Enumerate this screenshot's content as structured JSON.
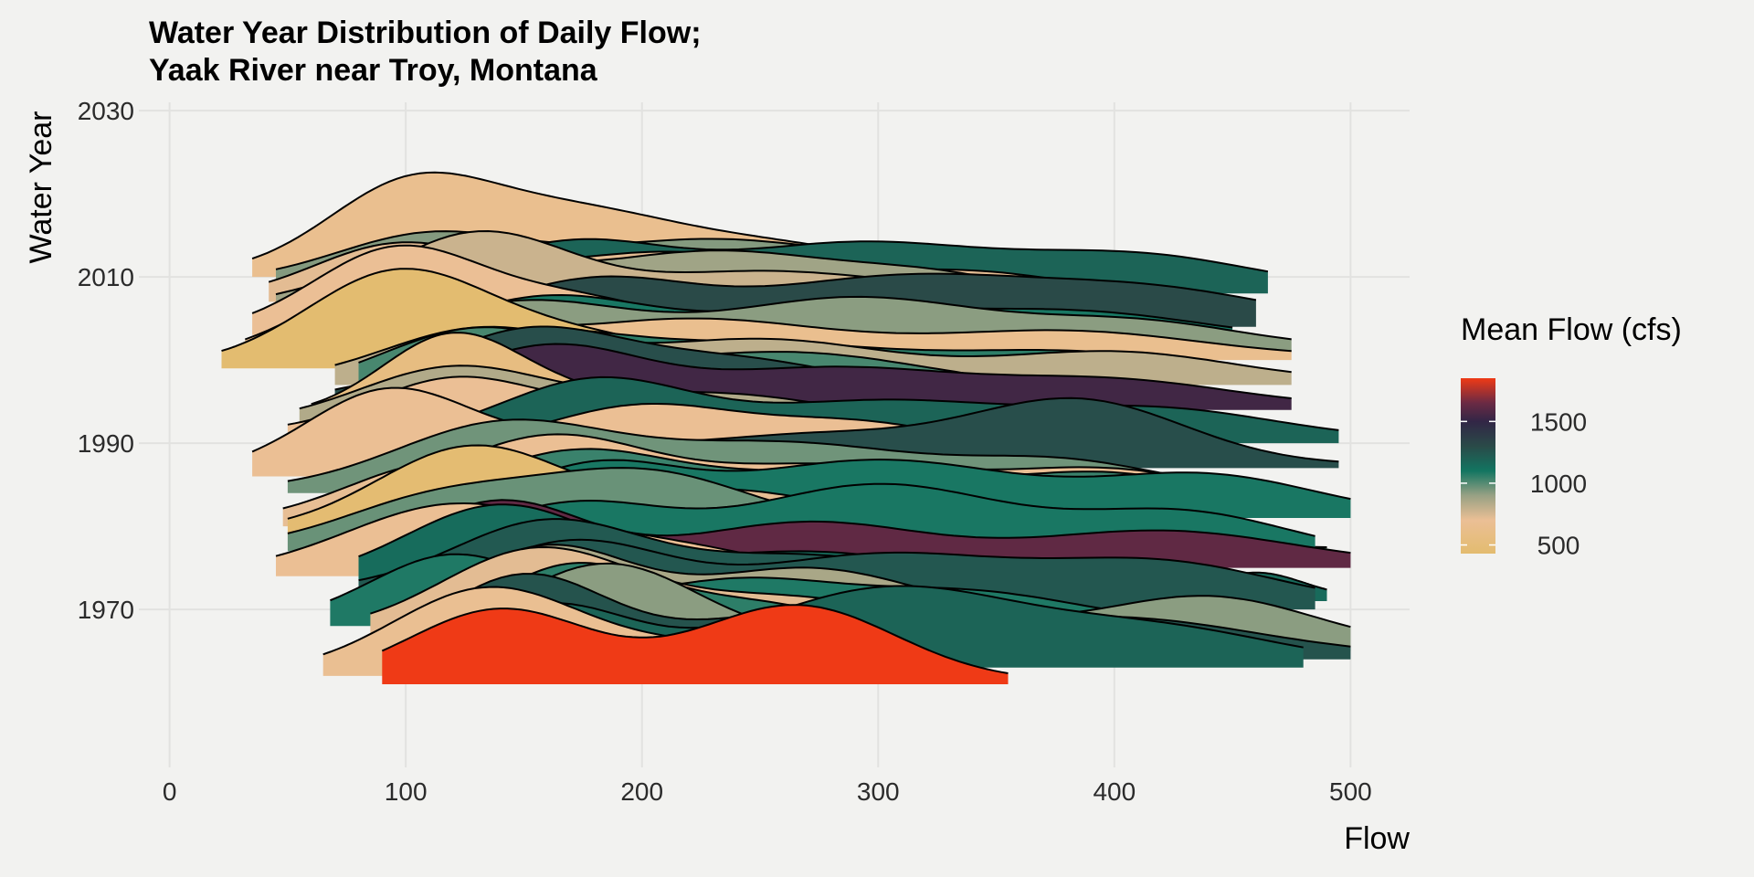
{
  "chart_data": {
    "type": "ridgeline",
    "title_line1": "Water Year Distribution of Daily Flow;",
    "title_line2": "Yaak River near Troy, Montana",
    "xlabel": "Flow",
    "ylabel": "Water Year",
    "xlim": [
      -13,
      525
    ],
    "ylim": [
      1951,
      2031
    ],
    "x_ticks": [
      "0",
      "100",
      "200",
      "300",
      "400",
      "500"
    ],
    "y_ticks": [
      "1970",
      "1990",
      "2010",
      "2030"
    ],
    "grid": true,
    "legend": {
      "title": "Mean Flow (cfs)",
      "placement": "right",
      "tick_labels": [
        "1500",
        "1000",
        "500"
      ],
      "tick_values": [
        1500,
        1000,
        500
      ],
      "range": [
        430,
        1850
      ],
      "color_stops": [
        {
          "value": 430,
          "color": "#e3bc6f"
        },
        {
          "value": 700,
          "color": "#ebbf95"
        },
        {
          "value": 900,
          "color": "#98a184"
        },
        {
          "value": 1100,
          "color": "#127561"
        },
        {
          "value": 1300,
          "color": "#2a4a48"
        },
        {
          "value": 1500,
          "color": "#322646"
        },
        {
          "value": 1650,
          "color": "#6b2a44"
        },
        {
          "value": 1850,
          "color": "#ef3a16"
        }
      ]
    },
    "series": [
      {
        "year": 1961,
        "x_range": [
          90,
          355
        ],
        "mean_flow": 1850,
        "peaks": [
          [
            140,
            0.85,
            38
          ],
          [
            265,
            0.9,
            42
          ]
        ]
      },
      {
        "year": 1962,
        "x_range": [
          65,
          340
        ],
        "mean_flow": 680,
        "peaks": [
          [
            135,
            1.0,
            40
          ],
          [
            230,
            0.3,
            40
          ]
        ]
      },
      {
        "year": 1963,
        "x_range": [
          70,
          480
        ],
        "mean_flow": 1180,
        "peaks": [
          [
            160,
            0.7,
            35
          ],
          [
            305,
            0.9,
            55
          ],
          [
            420,
            0.4,
            50
          ]
        ]
      },
      {
        "year": 1964,
        "x_range": [
          85,
          500
        ],
        "mean_flow": 1260,
        "peaks": [
          [
            150,
            0.95,
            35
          ],
          [
            270,
            0.5,
            50
          ],
          [
            400,
            0.45,
            60
          ]
        ]
      },
      {
        "year": 1965,
        "x_range": [
          85,
          500
        ],
        "mean_flow": 920,
        "peaks": [
          [
            185,
            1.0,
            40
          ],
          [
            330,
            0.3,
            45
          ],
          [
            440,
            0.6,
            45
          ]
        ]
      },
      {
        "year": 1966,
        "x_range": [
          100,
          335
        ],
        "mean_flow": 1060,
        "peaks": [
          [
            170,
            0.85,
            35
          ],
          [
            250,
            0.4,
            40
          ]
        ]
      },
      {
        "year": 1967,
        "x_range": [
          85,
          405
        ],
        "mean_flow": 720,
        "peaks": [
          [
            155,
            0.95,
            40
          ],
          [
            260,
            0.4,
            50
          ]
        ]
      },
      {
        "year": 1968,
        "x_range": [
          68,
          395
        ],
        "mean_flow": 1080,
        "peaks": [
          [
            120,
            0.8,
            35
          ],
          [
            240,
            0.5,
            45
          ],
          [
            340,
            0.35,
            45
          ]
        ]
      },
      {
        "year": 1969,
        "x_range": [
          90,
          405
        ],
        "mean_flow": 860,
        "peaks": [
          [
            160,
            0.8,
            35
          ],
          [
            270,
            0.55,
            45
          ]
        ]
      },
      {
        "year": 1970,
        "x_range": [
          85,
          485
        ],
        "mean_flow": 1240,
        "peaks": [
          [
            170,
            0.75,
            40
          ],
          [
            300,
            0.6,
            55
          ],
          [
            420,
            0.5,
            50
          ]
        ]
      },
      {
        "year": 1971,
        "x_range": [
          430,
          490
        ],
        "mean_flow": 1150,
        "peaks": [
          [
            460,
            0.3,
            20
          ]
        ]
      },
      {
        "year": 1972,
        "x_range": [
          80,
          375
        ],
        "mean_flow": 1230,
        "peaks": [
          [
            160,
            0.8,
            40
          ],
          [
            270,
            0.4,
            50
          ]
        ]
      },
      {
        "year": 1973,
        "x_range": [
          80,
          375
        ],
        "mean_flow": 1140,
        "peaks": [
          [
            140,
            0.9,
            40
          ],
          [
            270,
            0.35,
            50
          ]
        ]
      },
      {
        "year": 1974,
        "x_range": [
          45,
          310
        ],
        "mean_flow": 690,
        "peaks": [
          [
            120,
            0.8,
            45
          ],
          [
            210,
            0.3,
            40
          ]
        ]
      },
      {
        "year": 1975,
        "x_range": [
          80,
          500
        ],
        "mean_flow": 1620,
        "peaks": [
          [
            140,
            0.75,
            35
          ],
          [
            270,
            0.5,
            50
          ],
          [
            420,
            0.4,
            55
          ]
        ]
      },
      {
        "year": 1976,
        "x_range": [
          85,
          485
        ],
        "mean_flow": 1090,
        "peaks": [
          [
            170,
            0.6,
            40
          ],
          [
            300,
            0.85,
            55
          ],
          [
            430,
            0.5,
            45
          ]
        ]
      },
      {
        "year": 1977,
        "x_range": [
          50,
          490
        ],
        "mean_flow": 970,
        "peaks": [
          [
            110,
            0.5,
            40
          ],
          [
            200,
            0.9,
            50
          ],
          [
            350,
            0.4,
            50
          ]
        ]
      },
      {
        "year": 1978,
        "x_range": [
          410,
          445
        ],
        "mean_flow": 690,
        "peaks": [
          [
            428,
            0.2,
            15
          ]
        ]
      },
      {
        "year": 1979,
        "x_range": [
          50,
          330
        ],
        "mean_flow": 450,
        "peaks": [
          [
            128,
            1.0,
            40
          ],
          [
            220,
            0.3,
            40
          ]
        ]
      },
      {
        "year": 1980,
        "x_range": [
          48,
          350
        ],
        "mean_flow": 710,
        "peaks": [
          [
            115,
            0.7,
            40
          ],
          [
            230,
            0.4,
            50
          ]
        ]
      },
      {
        "year": 1981,
        "x_range": [
          110,
          500
        ],
        "mean_flow": 1090,
        "peaks": [
          [
            180,
            0.55,
            35
          ],
          [
            300,
            0.65,
            60
          ],
          [
            440,
            0.45,
            45
          ]
        ]
      },
      {
        "year": 1982,
        "x_range": [
          70,
          445
        ],
        "mean_flow": 1040,
        "peaks": [
          [
            170,
            0.6,
            40
          ],
          [
            280,
            0.4,
            60
          ],
          [
            400,
            0.35,
            40
          ]
        ]
      },
      {
        "year": 1983,
        "x_range": [
          85,
          460
        ],
        "mean_flow": 690,
        "peaks": [
          [
            160,
            0.7,
            40
          ],
          [
            280,
            0.4,
            60
          ],
          [
            400,
            0.3,
            40
          ]
        ]
      },
      {
        "year": 1984,
        "x_range": [
          50,
          440
        ],
        "mean_flow": 960,
        "peaks": [
          [
            140,
            0.75,
            45
          ],
          [
            260,
            0.55,
            60
          ],
          [
            380,
            0.3,
            40
          ]
        ]
      },
      {
        "year": 1985,
        "x_range": [
          373,
          397
        ],
        "mean_flow": 770,
        "peaks": [
          [
            385,
            0.15,
            10
          ]
        ]
      },
      {
        "year": 1986,
        "x_range": [
          35,
          300
        ],
        "mean_flow": 690,
        "peaks": [
          [
            92,
            0.95,
            35
          ],
          [
            180,
            0.4,
            45
          ]
        ]
      },
      {
        "year": 1987,
        "x_range": [
          70,
          495
        ],
        "mean_flow": 1280,
        "peaks": [
          [
            140,
            0.4,
            40
          ],
          [
            270,
            0.35,
            55
          ],
          [
            385,
            0.75,
            45
          ]
        ]
      },
      {
        "year": 1988,
        "x_range": [
          445,
          455
        ],
        "mean_flow": 650,
        "peaks": [
          [
            450,
            0.1,
            5
          ]
        ]
      },
      {
        "year": 1989,
        "x_range": [
          150,
          345
        ],
        "mean_flow": 690,
        "peaks": [
          [
            200,
            0.5,
            40
          ],
          [
            290,
            0.3,
            40
          ]
        ]
      },
      {
        "year": 1990,
        "x_range": [
          110,
          495
        ],
        "mean_flow": 1180,
        "peaks": [
          [
            180,
            0.7,
            40
          ],
          [
            300,
            0.45,
            55
          ],
          [
            420,
            0.35,
            50
          ]
        ]
      },
      {
        "year": 1991,
        "x_range": [
          50,
          335
        ],
        "mean_flow": 700,
        "peaks": [
          [
            120,
            0.6,
            35
          ],
          [
            220,
            0.35,
            50
          ]
        ]
      },
      {
        "year": 1992,
        "x_range": [
          55,
          360
        ],
        "mean_flow": 840,
        "peaks": [
          [
            120,
            0.65,
            40
          ],
          [
            230,
            0.35,
            50
          ]
        ]
      },
      {
        "year": 1993,
        "x_range": [
          60,
          250
        ],
        "mean_flow": 560,
        "peaks": [
          [
            120,
            0.95,
            30
          ],
          [
            180,
            0.2,
            30
          ]
        ]
      },
      {
        "year": 1994,
        "x_range": [
          80,
          475
        ],
        "mean_flow": 1540,
        "peaks": [
          [
            160,
            0.7,
            40
          ],
          [
            280,
            0.45,
            55
          ],
          [
            400,
            0.3,
            50
          ]
        ]
      },
      {
        "year": 1995,
        "x_range": [
          70,
          340
        ],
        "mean_flow": 1280,
        "peaks": [
          [
            150,
            0.75,
            40
          ],
          [
            240,
            0.45,
            50
          ]
        ]
      },
      {
        "year": 1996,
        "x_range": [
          80,
          400
        ],
        "mean_flow": 1020,
        "peaks": [
          [
            130,
            0.7,
            40
          ],
          [
            260,
            0.45,
            60
          ]
        ]
      },
      {
        "year": 1997,
        "x_range": [
          70,
          475
        ],
        "mean_flow": 810,
        "peaks": [
          [
            130,
            0.6,
            40
          ],
          [
            250,
            0.5,
            55
          ],
          [
            400,
            0.35,
            50
          ]
        ]
      },
      {
        "year": 1998,
        "x_range": [
          80,
          440
        ],
        "mean_flow": 1060,
        "peaks": [
          [
            150,
            0.45,
            40
          ],
          [
            250,
            0.35,
            55
          ],
          [
            380,
            0.25,
            50
          ]
        ]
      },
      {
        "year": 1999,
        "x_range": [
          22,
          265
        ],
        "mean_flow": 440,
        "peaks": [
          [
            95,
            1.05,
            38
          ],
          [
            170,
            0.35,
            45
          ]
        ]
      },
      {
        "year": 2000,
        "x_range": [
          32,
          475
        ],
        "mean_flow": 660,
        "peaks": [
          [
            90,
            0.8,
            35
          ],
          [
            220,
            0.45,
            60
          ],
          [
            380,
            0.3,
            55
          ]
        ]
      },
      {
        "year": 2001,
        "x_range": [
          55,
          475
        ],
        "mean_flow": 920,
        "peaks": [
          [
            150,
            0.55,
            45
          ],
          [
            290,
            0.6,
            55
          ],
          [
            410,
            0.3,
            45
          ]
        ]
      },
      {
        "year": 2002,
        "x_range": [
          90,
          450
        ],
        "mean_flow": 1090,
        "peaks": [
          [
            160,
            0.5,
            40
          ],
          [
            280,
            0.35,
            55
          ],
          [
            390,
            0.3,
            50
          ]
        ]
      },
      {
        "year": 2003,
        "x_range": [
          35,
          250
        ],
        "mean_flow": 700,
        "peaks": [
          [
            95,
            0.95,
            35
          ],
          [
            170,
            0.4,
            40
          ]
        ]
      },
      {
        "year": 2004,
        "x_range": [
          70,
          460
        ],
        "mean_flow": 1300,
        "peaks": [
          [
            180,
            0.5,
            40
          ],
          [
            310,
            0.55,
            60
          ],
          [
            420,
            0.35,
            50
          ]
        ]
      },
      {
        "year": 2005,
        "x_range": [
          60,
          435
        ],
        "mean_flow": 780,
        "peaks": [
          [
            130,
            0.95,
            40
          ],
          [
            250,
            0.5,
            55
          ],
          [
            370,
            0.3,
            50
          ]
        ]
      },
      {
        "year": 2006,
        "x_range": [
          45,
          375
        ],
        "mean_flow": 880,
        "peaks": [
          [
            110,
            0.55,
            40
          ],
          [
            230,
            0.65,
            55
          ],
          [
            330,
            0.3,
            40
          ]
        ]
      },
      {
        "year": 2007,
        "x_range": [
          42,
          405
        ],
        "mean_flow": 720,
        "peaks": [
          [
            95,
            0.6,
            35
          ],
          [
            210,
            0.55,
            55
          ],
          [
            340,
            0.3,
            45
          ]
        ]
      },
      {
        "year": 2008,
        "x_range": [
          45,
          465
        ],
        "mean_flow": 1180,
        "peaks": [
          [
            170,
            0.55,
            40
          ],
          [
            290,
            0.55,
            55
          ],
          [
            410,
            0.4,
            50
          ]
        ]
      },
      {
        "year": 2009,
        "x_range": [
          45,
          450
        ],
        "mean_flow": 930,
        "peaks": [
          [
            110,
            0.55,
            40
          ],
          [
            230,
            0.5,
            55
          ],
          [
            360,
            0.35,
            45
          ]
        ]
      },
      {
        "year": 2010,
        "x_range": [
          35,
          325
        ],
        "mean_flow": 660,
        "peaks": [
          [
            100,
            0.95,
            35
          ],
          [
            170,
            0.7,
            45
          ],
          [
            260,
            0.3,
            45
          ]
        ]
      }
    ]
  }
}
